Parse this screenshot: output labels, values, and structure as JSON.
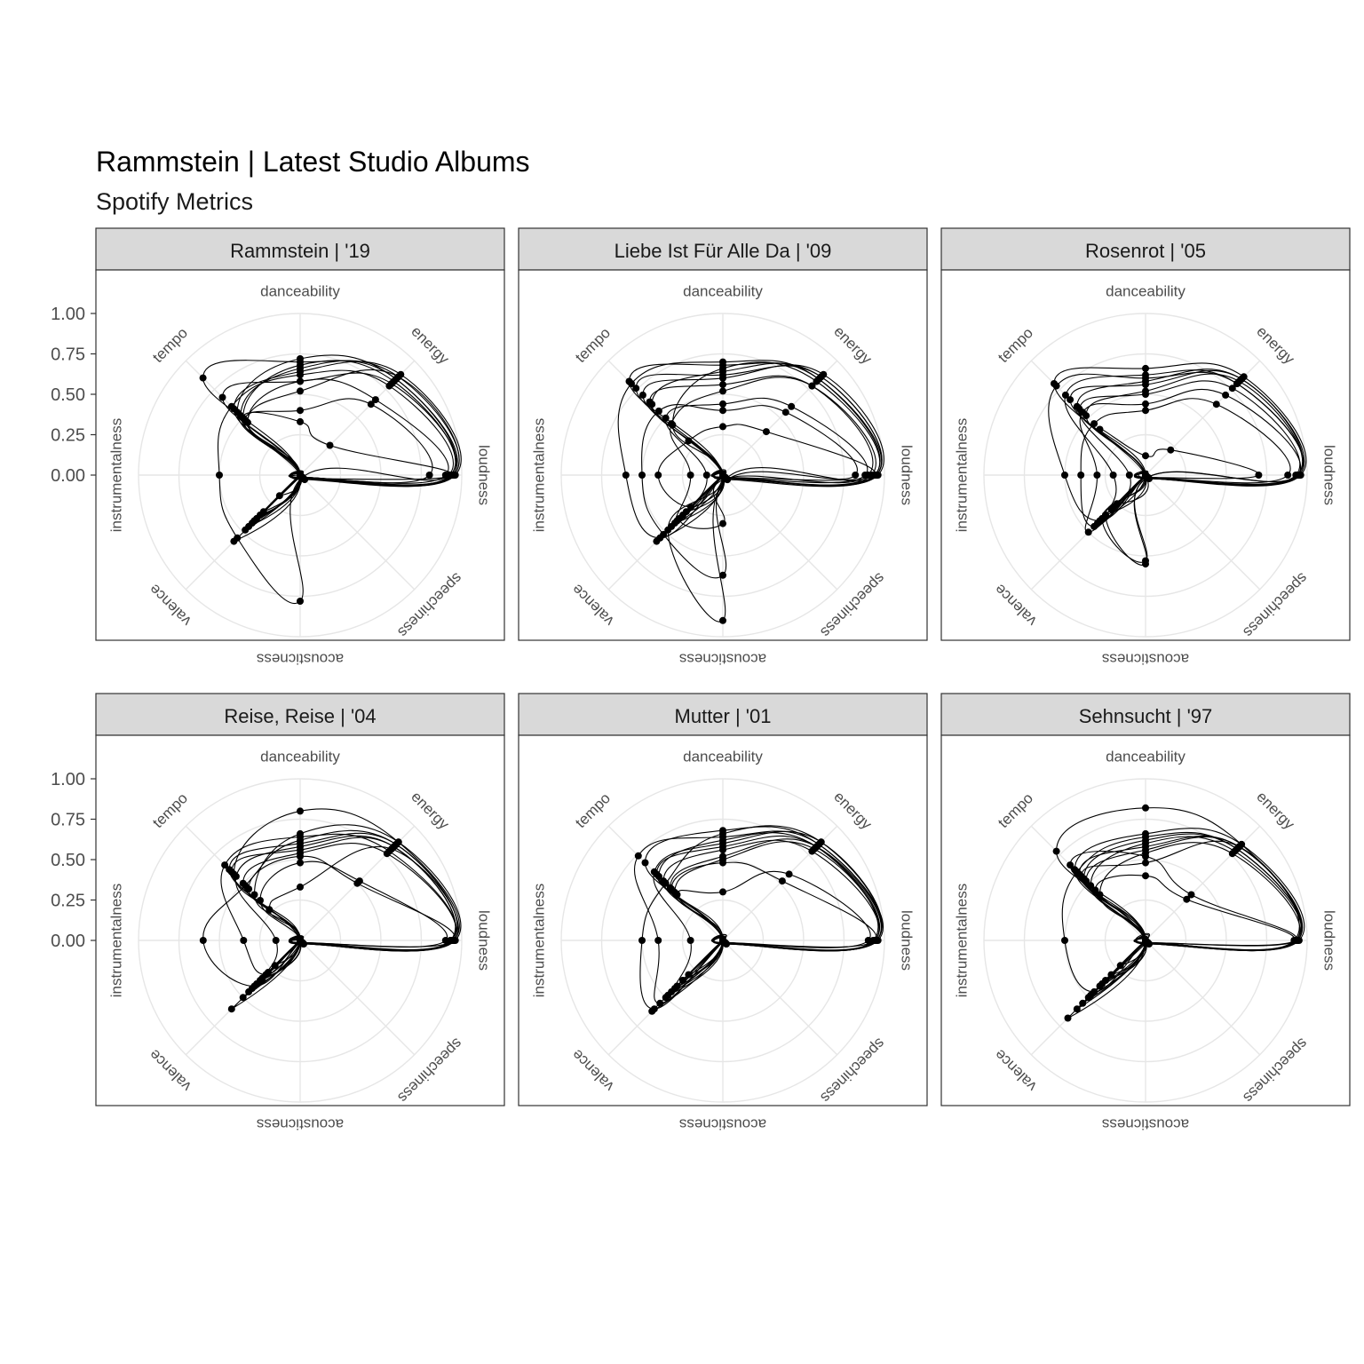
{
  "chart_data": {
    "type": "radar",
    "title": "Rammstein | Latest Studio Albums",
    "subtitle": "Spotify Metrics",
    "axes": [
      "danceability",
      "energy",
      "loudness",
      "speechiness",
      "acousticness",
      "valence",
      "instrumentalness",
      "tempo"
    ],
    "radial_ticks": [
      "0.00",
      "0.25",
      "0.50",
      "0.75",
      "1.00"
    ],
    "ylim": [
      0,
      1
    ],
    "grid": true,
    "line_color": "#000000",
    "panels": [
      {
        "label": "Rammstein | '19",
        "tracks": [
          [
            0.72,
            0.84,
            0.94,
            0.02,
            0.01,
            0.32,
            0.0,
            0.55
          ],
          [
            0.68,
            0.82,
            0.93,
            0.03,
            0.0,
            0.38,
            0.0,
            0.5
          ],
          [
            0.58,
            0.8,
            0.94,
            0.02,
            0.01,
            0.45,
            0.0,
            0.68
          ],
          [
            0.66,
            0.86,
            0.95,
            0.03,
            0.0,
            0.4,
            0.0,
            0.52
          ],
          [
            0.62,
            0.78,
            0.92,
            0.02,
            0.78,
            0.55,
            0.5,
            0.6
          ],
          [
            0.52,
            0.86,
            0.95,
            0.04,
            0.0,
            0.48,
            0.0,
            0.46
          ],
          [
            0.4,
            0.62,
            0.8,
            0.02,
            0.01,
            0.18,
            0.0,
            0.48
          ],
          [
            0.64,
            0.88,
            0.96,
            0.03,
            0.0,
            0.35,
            0.0,
            0.58
          ],
          [
            0.7,
            0.84,
            0.93,
            0.02,
            0.01,
            0.58,
            0.0,
            0.85
          ],
          [
            0.58,
            0.66,
            0.9,
            0.02,
            0.0,
            0.42,
            0.0,
            0.46
          ],
          [
            0.33,
            0.26,
            0.94,
            0.03,
            0.01,
            0.4,
            0.0,
            0.5
          ]
        ]
      },
      {
        "label": "Liebe Ist Für Alle Da | '09",
        "tracks": [
          [
            0.64,
            0.86,
            0.95,
            0.03,
            0.9,
            0.48,
            0.0,
            0.62
          ],
          [
            0.7,
            0.84,
            0.94,
            0.02,
            0.0,
            0.55,
            0.6,
            0.8
          ],
          [
            0.52,
            0.78,
            0.92,
            0.03,
            0.01,
            0.4,
            0.2,
            0.45
          ],
          [
            0.6,
            0.88,
            0.96,
            0.02,
            0.0,
            0.32,
            0.0,
            0.7
          ],
          [
            0.4,
            0.55,
            0.82,
            0.04,
            0.62,
            0.52,
            0.5,
            0.56
          ],
          [
            0.66,
            0.82,
            0.94,
            0.02,
            0.0,
            0.45,
            0.0,
            0.44
          ],
          [
            0.56,
            0.78,
            0.9,
            0.03,
            0.3,
            0.38,
            0.0,
            0.64
          ],
          [
            0.3,
            0.38,
            0.94,
            0.02,
            0.0,
            0.28,
            0.4,
            0.3
          ],
          [
            0.68,
            0.84,
            0.95,
            0.03,
            0.01,
            0.58,
            0.0,
            0.82
          ],
          [
            0.44,
            0.6,
            0.88,
            0.02,
            0.0,
            0.35,
            0.1,
            0.5
          ],
          [
            0.62,
            0.86,
            0.95,
            0.04,
            0.0,
            0.42,
            0.0,
            0.76
          ]
        ]
      },
      {
        "label": "Rosenrot | '05",
        "tracks": [
          [
            0.6,
            0.8,
            0.95,
            0.02,
            0.0,
            0.4,
            0.5,
            0.78
          ],
          [
            0.44,
            0.7,
            0.94,
            0.03,
            0.01,
            0.5,
            0.3,
            0.55
          ],
          [
            0.58,
            0.84,
            0.95,
            0.02,
            0.55,
            0.35,
            0.0,
            0.6
          ],
          [
            0.66,
            0.86,
            0.96,
            0.03,
            0.0,
            0.25,
            0.0,
            0.8
          ],
          [
            0.4,
            0.62,
            0.88,
            0.02,
            0.0,
            0.45,
            0.4,
            0.45
          ],
          [
            0.52,
            0.82,
            0.94,
            0.02,
            0.53,
            0.38,
            0.0,
            0.52
          ],
          [
            0.62,
            0.8,
            0.95,
            0.03,
            0.0,
            0.3,
            0.2,
            0.7
          ],
          [
            0.12,
            0.22,
            0.7,
            0.02,
            0.0,
            0.42,
            0.0,
            0.4
          ],
          [
            0.56,
            0.84,
            0.94,
            0.02,
            0.01,
            0.35,
            0.0,
            0.66
          ],
          [
            0.5,
            0.76,
            0.93,
            0.03,
            0.0,
            0.28,
            0.1,
            0.58
          ]
        ]
      },
      {
        "label": "Reise, Reise | '04",
        "tracks": [
          [
            0.8,
            0.86,
            0.95,
            0.02,
            0.01,
            0.6,
            0.0,
            0.58
          ],
          [
            0.62,
            0.84,
            0.94,
            0.03,
            0.0,
            0.4,
            0.6,
            0.48
          ],
          [
            0.56,
            0.82,
            0.93,
            0.02,
            0.0,
            0.35,
            0.0,
            0.6
          ],
          [
            0.64,
            0.78,
            0.94,
            0.03,
            0.01,
            0.3,
            0.35,
            0.66
          ],
          [
            0.52,
            0.5,
            0.95,
            0.02,
            0.0,
            0.45,
            0.0,
            0.45
          ],
          [
            0.58,
            0.82,
            0.93,
            0.03,
            0.0,
            0.28,
            0.15,
            0.56
          ],
          [
            0.66,
            0.86,
            0.96,
            0.02,
            0.0,
            0.5,
            0.0,
            0.4
          ],
          [
            0.48,
            0.52,
            0.9,
            0.02,
            0.01,
            0.22,
            0.0,
            0.35
          ],
          [
            0.6,
            0.84,
            0.94,
            0.03,
            0.0,
            0.33,
            0.0,
            0.62
          ],
          [
            0.33,
            0.8,
            0.95,
            0.02,
            0.0,
            0.38,
            0.0,
            0.27
          ],
          [
            0.54,
            0.76,
            0.94,
            0.02,
            0.01,
            0.42,
            0.0,
            0.5
          ]
        ]
      },
      {
        "label": "Mutter | '01",
        "tracks": [
          [
            0.66,
            0.86,
            0.95,
            0.02,
            0.0,
            0.6,
            0.5,
            0.5
          ],
          [
            0.58,
            0.82,
            0.94,
            0.03,
            0.0,
            0.45,
            0.0,
            0.58
          ],
          [
            0.64,
            0.84,
            0.95,
            0.02,
            0.01,
            0.55,
            0.4,
            0.74
          ],
          [
            0.48,
            0.52,
            0.94,
            0.02,
            0.0,
            0.35,
            0.0,
            0.45
          ],
          [
            0.62,
            0.82,
            0.93,
            0.03,
            0.0,
            0.62,
            0.0,
            0.56
          ],
          [
            0.3,
            0.58,
            0.9,
            0.02,
            0.0,
            0.3,
            0.0,
            0.4
          ],
          [
            0.6,
            0.86,
            0.95,
            0.02,
            0.0,
            0.4,
            0.2,
            0.6
          ],
          [
            0.5,
            0.8,
            0.94,
            0.03,
            0.01,
            0.5,
            0.0,
            0.42
          ],
          [
            0.68,
            0.84,
            0.96,
            0.02,
            0.0,
            0.48,
            0.0,
            0.68
          ],
          [
            0.56,
            0.78,
            0.94,
            0.02,
            0.0,
            0.35,
            0.0,
            0.52
          ],
          [
            0.52,
            0.82,
            0.95,
            0.03,
            0.0,
            0.42,
            0.0,
            0.46
          ]
        ]
      },
      {
        "label": "Sehnsucht | '97",
        "tracks": [
          [
            0.82,
            0.84,
            0.93,
            0.02,
            0.0,
            0.68,
            0.0,
            0.78
          ],
          [
            0.64,
            0.8,
            0.94,
            0.03,
            0.0,
            0.45,
            0.5,
            0.6
          ],
          [
            0.56,
            0.82,
            0.93,
            0.02,
            0.01,
            0.5,
            0.0,
            0.52
          ],
          [
            0.52,
            0.4,
            0.93,
            0.02,
            0.0,
            0.35,
            0.0,
            0.66
          ],
          [
            0.6,
            0.78,
            0.94,
            0.03,
            0.0,
            0.4,
            0.0,
            0.48
          ],
          [
            0.48,
            0.82,
            0.92,
            0.02,
            0.02,
            0.55,
            0.0,
            0.56
          ],
          [
            0.66,
            0.84,
            0.95,
            0.02,
            0.0,
            0.3,
            0.0,
            0.62
          ],
          [
            0.4,
            0.36,
            0.92,
            0.02,
            0.0,
            0.22,
            0.0,
            0.44
          ],
          [
            0.62,
            0.8,
            0.94,
            0.03,
            0.0,
            0.6,
            0.0,
            0.54
          ],
          [
            0.54,
            0.76,
            0.93,
            0.02,
            0.0,
            0.38,
            0.0,
            0.4
          ],
          [
            0.58,
            0.82,
            0.94,
            0.02,
            0.01,
            0.48,
            0.0,
            0.58
          ]
        ]
      }
    ]
  }
}
